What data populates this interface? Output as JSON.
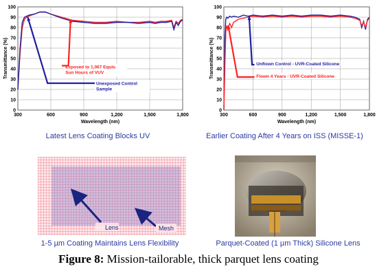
{
  "chart_data": [
    {
      "type": "line",
      "title": "Latest Lens Coating Blocks UV",
      "xlabel": "Wavelength (nm)",
      "ylabel": "Transmittance (%)",
      "xlim": [
        300,
        1800
      ],
      "ylim": [
        0,
        100
      ],
      "x_ticks": [
        "300",
        "600",
        "900",
        "1,200",
        "1,500",
        "1,800"
      ],
      "y_ticks": [
        "0",
        "10",
        "20",
        "30",
        "40",
        "50",
        "60",
        "70",
        "80",
        "90",
        "100"
      ],
      "grid": true,
      "series": [
        {
          "name": "Exposed to 1,067 Equiv. Sun Hours of VUV",
          "color": "#ff2020",
          "x": [
            300,
            320,
            340,
            360,
            380,
            400,
            450,
            500,
            550,
            600,
            700,
            800,
            900,
            1000,
            1100,
            1200,
            1300,
            1400,
            1500,
            1550,
            1600,
            1650,
            1700,
            1720,
            1740,
            1760,
            1780,
            1800
          ],
          "y": [
            20,
            55,
            80,
            88,
            90,
            91,
            93,
            95,
            95,
            93,
            90,
            87,
            86,
            85,
            85,
            86,
            85,
            85,
            86,
            85,
            86,
            86,
            87,
            80,
            86,
            84,
            87,
            88
          ]
        },
        {
          "name": "Unexposed Control Sample",
          "color": "#2020a0",
          "x": [
            300,
            320,
            340,
            360,
            380,
            400,
            450,
            500,
            550,
            600,
            700,
            800,
            900,
            1000,
            1100,
            1200,
            1300,
            1400,
            1500,
            1550,
            1600,
            1650,
            1700,
            1720,
            1740,
            1760,
            1780,
            1800
          ],
          "y": [
            20,
            60,
            85,
            90,
            91,
            92,
            93,
            95,
            95,
            93,
            89,
            86,
            85,
            84,
            84,
            85,
            85,
            84,
            85,
            84,
            85,
            85,
            86,
            78,
            85,
            82,
            86,
            87
          ]
        }
      ]
    },
    {
      "type": "line",
      "title": "Earlier Coating After 4 Years on ISS (MISSE-1)",
      "xlabel": "Wavelength (nm)",
      "ylabel": "Transmittance (%)",
      "xlim": [
        300,
        1800
      ],
      "ylim": [
        0,
        100
      ],
      "x_ticks": [
        "300",
        "600",
        "900",
        "1,200",
        "1,500",
        "1,800"
      ],
      "y_ticks": [
        "0",
        "10",
        "20",
        "30",
        "40",
        "50",
        "60",
        "70",
        "80",
        "90",
        "100"
      ],
      "grid": true,
      "series": [
        {
          "name": "Unflown Control - UVR-Coated Silicone",
          "color": "#2020a0",
          "x": [
            300,
            310,
            320,
            330,
            340,
            360,
            380,
            400,
            450,
            500,
            550,
            600,
            700,
            800,
            900,
            1000,
            1100,
            1200,
            1300,
            1400,
            1500,
            1600,
            1650,
            1700,
            1720,
            1740,
            1760,
            1780,
            1800
          ],
          "y": [
            0,
            70,
            88,
            90,
            89,
            91,
            90,
            91,
            90,
            92,
            91,
            92,
            91,
            92,
            91,
            92,
            91,
            92,
            92,
            91,
            92,
            91,
            90,
            88,
            80,
            86,
            78,
            88,
            90
          ]
        },
        {
          "name": "Flown 4 Years - UVR-Coated Silicone",
          "color": "#ff2020",
          "x": [
            300,
            310,
            320,
            330,
            340,
            360,
            380,
            400,
            450,
            500,
            550,
            600,
            700,
            800,
            900,
            1000,
            1100,
            1200,
            1300,
            1400,
            1500,
            1600,
            1650,
            1700,
            1720,
            1740,
            1760,
            1780,
            1800
          ],
          "y": [
            0,
            40,
            75,
            82,
            78,
            84,
            80,
            85,
            88,
            89,
            90,
            91,
            90,
            91,
            90,
            91,
            90,
            91,
            91,
            90,
            91,
            90,
            89,
            87,
            82,
            85,
            80,
            87,
            89
          ]
        }
      ]
    }
  ],
  "captions": {
    "chart1": "Latest Lens Coating Blocks UV",
    "chart2": "Earlier Coating After 4 Years on ISS (MISSE-1)",
    "photo1": "1-5 µm Coating Maintains Lens Flexibility",
    "photo2": "Parquet-Coated (1 µm Thick) Silicone Lens"
  },
  "photo1_labels": {
    "lens": "Lens",
    "mesh": "Mesh"
  },
  "figure_caption": {
    "label": "Figure 8:",
    "text": " Mission-tailorable, thick parquet lens coating"
  },
  "colors": {
    "red": "#ff2020",
    "blue": "#2020a0",
    "caption_blue": "#2b3aa0",
    "mesh_pink": "#f4a0a8",
    "lens_purple": "#8a7cc8"
  }
}
